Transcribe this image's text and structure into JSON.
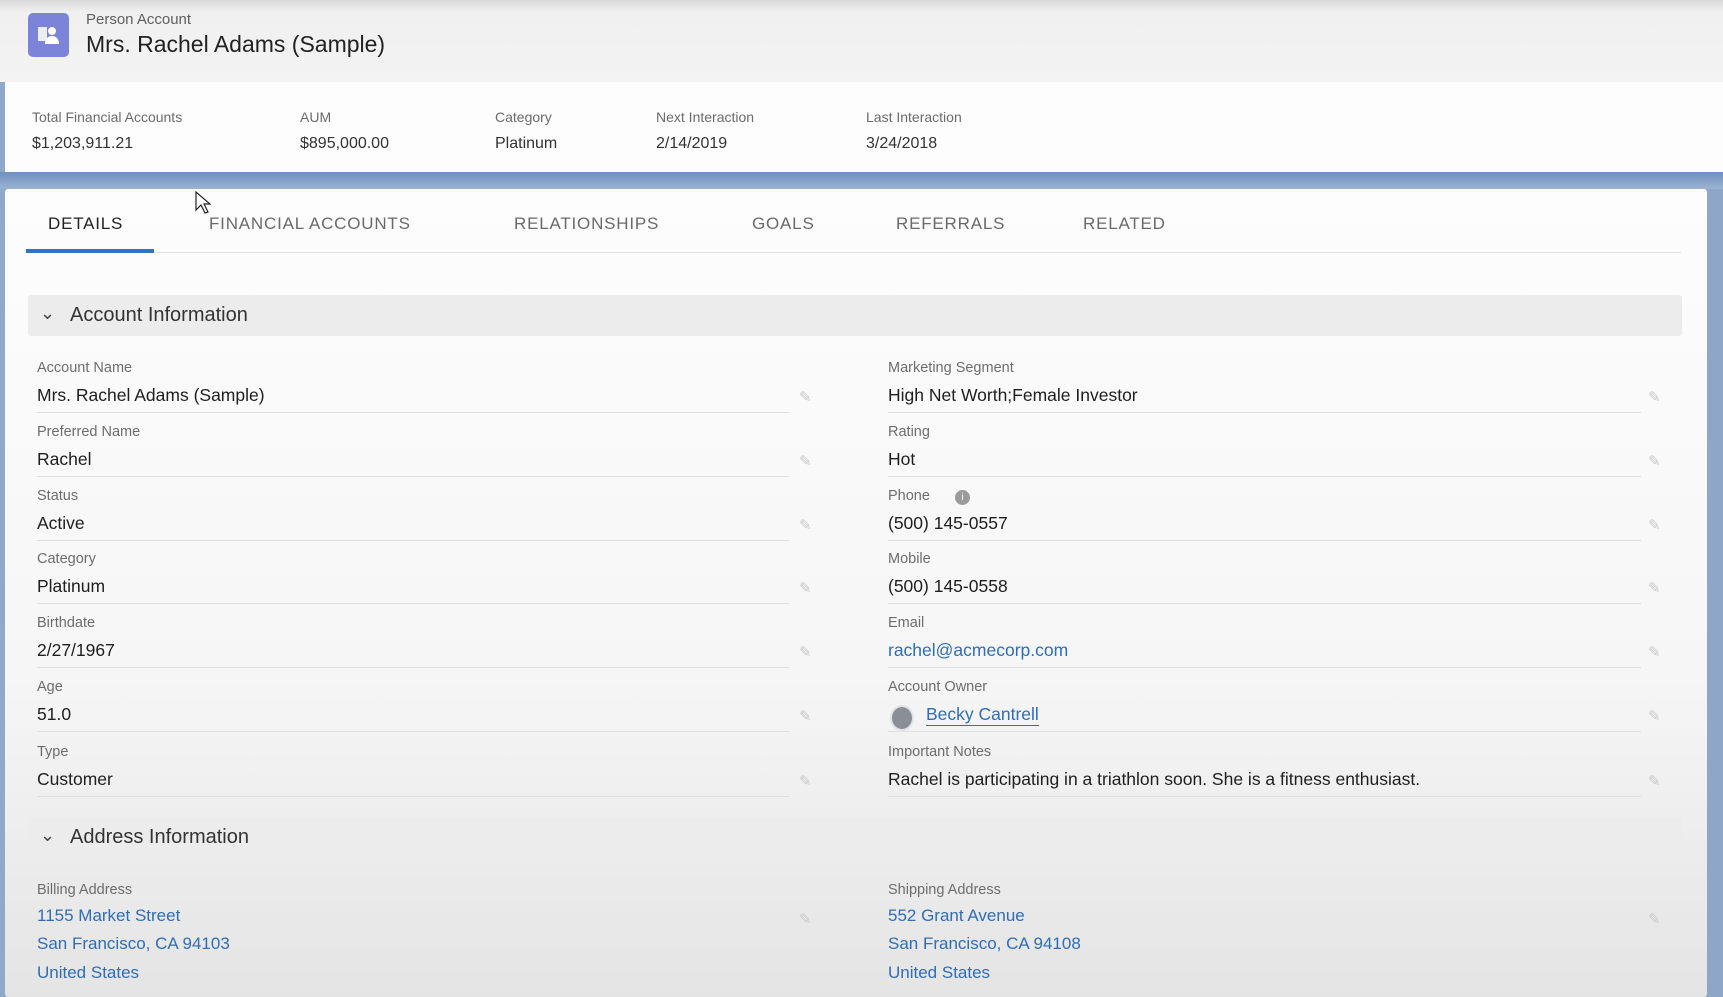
{
  "header": {
    "object_type": "Person Account",
    "title": "Mrs. Rachel Adams (Sample)",
    "icon": "person-account-icon",
    "icon_color": "#7b84d8"
  },
  "highlights": [
    {
      "label": "Total Financial Accounts",
      "value": "$1,203,911.21"
    },
    {
      "label": "AUM",
      "value": "$895,000.00"
    },
    {
      "label": "Category",
      "value": "Platinum"
    },
    {
      "label": "Next Interaction",
      "value": "2/14/2019"
    },
    {
      "label": "Last Interaction",
      "value": "3/24/2018"
    }
  ],
  "tabs": [
    {
      "label": "DETAILS",
      "active": true
    },
    {
      "label": "FINANCIAL ACCOUNTS"
    },
    {
      "label": "RELATIONSHIPS"
    },
    {
      "label": "GOALS"
    },
    {
      "label": "REFERRALS"
    },
    {
      "label": "RELATED"
    }
  ],
  "sections": {
    "account": {
      "title": "Account Information",
      "left": [
        {
          "label": "Account Name",
          "value": "Mrs. Rachel Adams (Sample)"
        },
        {
          "label": "Preferred Name",
          "value": "Rachel"
        },
        {
          "label": "Status",
          "value": "Active"
        },
        {
          "label": "Category",
          "value": "Platinum"
        },
        {
          "label": "Birthdate",
          "value": "2/27/1967"
        },
        {
          "label": "Age",
          "value": "51.0"
        },
        {
          "label": "Type",
          "value": "Customer"
        }
      ],
      "right": [
        {
          "label": "Marketing Segment",
          "value": "High Net Worth;Female Investor"
        },
        {
          "label": "Rating",
          "value": "Hot"
        },
        {
          "label": "Phone",
          "value": "(500) 145-0557"
        },
        {
          "label": "Mobile",
          "value": "(500) 145-0558"
        },
        {
          "label": "Email",
          "value": "rachel@acmecorp.com"
        },
        {
          "label": "Account Owner",
          "value": "Becky Cantrell"
        },
        {
          "label": "Important Notes",
          "value": "Rachel is participating in a triathlon soon. She is a fitness enthusiast."
        }
      ]
    },
    "address": {
      "title": "Address Information",
      "billing": {
        "label": "Billing Address",
        "lines": [
          "1155 Market Street",
          "San Francisco, CA 94103",
          "United States"
        ]
      },
      "shipping": {
        "label": "Shipping Address",
        "lines": [
          "552 Grant Avenue",
          "San Francisco, CA 94108",
          "United States"
        ]
      }
    }
  },
  "colors": {
    "link": "#2f6db5",
    "tab_active": "#2e74c0"
  }
}
